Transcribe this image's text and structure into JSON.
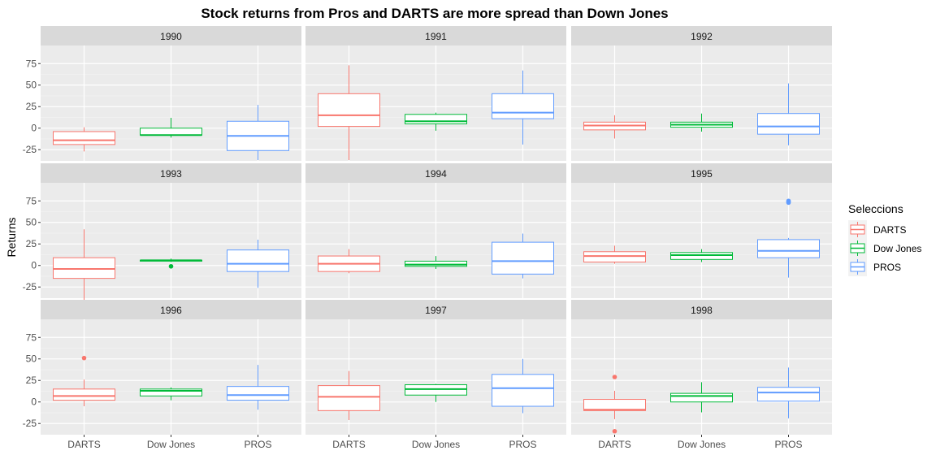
{
  "chart_data": {
    "type": "boxplot",
    "title": "Stock returns from Pros and DARTS are more spread than Down Jones",
    "xlabel": "",
    "ylabel": "Returns",
    "ylim": [
      -38,
      96
    ],
    "yticks": [
      -25,
      0,
      25,
      50,
      75
    ],
    "categories": [
      "DARTS",
      "Dow Jones",
      "PROS"
    ],
    "colors": {
      "DARTS": "#F8766D",
      "Dow Jones": "#00BA38",
      "PROS": "#619CFF"
    },
    "legend": {
      "title": "Seleccions",
      "position": "right",
      "entries": [
        "DARTS",
        "Dow Jones",
        "PROS"
      ]
    },
    "grid": true,
    "facets": [
      {
        "label": "1990",
        "boxes": [
          {
            "category": "DARTS",
            "min": -27,
            "q1": -19,
            "median": -14,
            "q3": -4,
            "max": 1,
            "outliers": []
          },
          {
            "category": "Dow Jones",
            "min": -11,
            "q1": -8,
            "median": -8,
            "q3": 0,
            "max": 12,
            "outliers": []
          },
          {
            "category": "PROS",
            "min": -37,
            "q1": -26,
            "median": -9,
            "q3": 8,
            "max": 27,
            "outliers": []
          }
        ]
      },
      {
        "label": "1991",
        "boxes": [
          {
            "category": "DARTS",
            "min": -37,
            "q1": 2,
            "median": 15,
            "q3": 40,
            "max": 73,
            "outliers": []
          },
          {
            "category": "Dow Jones",
            "min": -3,
            "q1": 5,
            "median": 8,
            "q3": 16,
            "max": 18,
            "outliers": []
          },
          {
            "category": "PROS",
            "min": -19,
            "q1": 11,
            "median": 18,
            "q3": 40,
            "max": 67,
            "outliers": []
          }
        ]
      },
      {
        "label": "1992",
        "boxes": [
          {
            "category": "DARTS",
            "min": -12,
            "q1": -2,
            "median": 3,
            "q3": 7,
            "max": 15,
            "outliers": []
          },
          {
            "category": "Dow Jones",
            "min": -4,
            "q1": 1,
            "median": 4,
            "q3": 7,
            "max": 17,
            "outliers": []
          },
          {
            "category": "PROS",
            "min": -20,
            "q1": -7,
            "median": 2,
            "q3": 17,
            "max": 52,
            "outliers": []
          }
        ]
      },
      {
        "label": "1993",
        "boxes": [
          {
            "category": "DARTS",
            "min": -42,
            "q1": -15,
            "median": -4,
            "q3": 9,
            "max": 42,
            "outliers": []
          },
          {
            "category": "Dow Jones",
            "min": 4,
            "q1": 5,
            "median": 6,
            "q3": 6,
            "max": 8,
            "outliers": [
              -1
            ]
          },
          {
            "category": "PROS",
            "min": -26,
            "q1": -7,
            "median": 2,
            "q3": 18,
            "max": 30,
            "outliers": []
          }
        ]
      },
      {
        "label": "1994",
        "boxes": [
          {
            "category": "DARTS",
            "min": -9,
            "q1": -7,
            "median": 2,
            "q3": 11,
            "max": 19,
            "outliers": []
          },
          {
            "category": "Dow Jones",
            "min": -4,
            "q1": -1,
            "median": 1,
            "q3": 5,
            "max": 11,
            "outliers": []
          },
          {
            "category": "PROS",
            "min": -15,
            "q1": -10,
            "median": 5,
            "q3": 27,
            "max": 37,
            "outliers": []
          }
        ]
      },
      {
        "label": "1995",
        "boxes": [
          {
            "category": "DARTS",
            "min": 2,
            "q1": 4,
            "median": 11,
            "q3": 16,
            "max": 23,
            "outliers": []
          },
          {
            "category": "Dow Jones",
            "min": 4,
            "q1": 7,
            "median": 12,
            "q3": 15,
            "max": 19,
            "outliers": []
          },
          {
            "category": "PROS",
            "min": -14,
            "q1": 9,
            "median": 17,
            "q3": 30,
            "max": 32,
            "outliers": [
              73,
              74,
              75
            ]
          }
        ]
      },
      {
        "label": "1996",
        "boxes": [
          {
            "category": "DARTS",
            "min": -5,
            "q1": 2,
            "median": 7,
            "q3": 15,
            "max": 26,
            "outliers": [
              51
            ]
          },
          {
            "category": "Dow Jones",
            "min": 2,
            "q1": 7,
            "median": 13,
            "q3": 15,
            "max": 17,
            "outliers": []
          },
          {
            "category": "PROS",
            "min": -9,
            "q1": 2,
            "median": 8,
            "q3": 18,
            "max": 43,
            "outliers": []
          }
        ]
      },
      {
        "label": "1997",
        "boxes": [
          {
            "category": "DARTS",
            "min": -21,
            "q1": -10,
            "median": 6,
            "q3": 19,
            "max": 36,
            "outliers": []
          },
          {
            "category": "Dow Jones",
            "min": 0,
            "q1": 8,
            "median": 15,
            "q3": 20,
            "max": 21,
            "outliers": []
          },
          {
            "category": "PROS",
            "min": -13,
            "q1": -5,
            "median": 16,
            "q3": 32,
            "max": 50,
            "outliers": []
          }
        ]
      },
      {
        "label": "1998",
        "boxes": [
          {
            "category": "DARTS",
            "min": -20,
            "q1": -10,
            "median": -9,
            "q3": 3,
            "max": 13,
            "outliers": [
              29,
              -34
            ]
          },
          {
            "category": "Dow Jones",
            "min": -12,
            "q1": 0,
            "median": 7,
            "q3": 10,
            "max": 23,
            "outliers": []
          },
          {
            "category": "PROS",
            "min": -19,
            "q1": 1,
            "median": 11,
            "q3": 17,
            "max": 40,
            "outliers": []
          }
        ]
      }
    ]
  }
}
